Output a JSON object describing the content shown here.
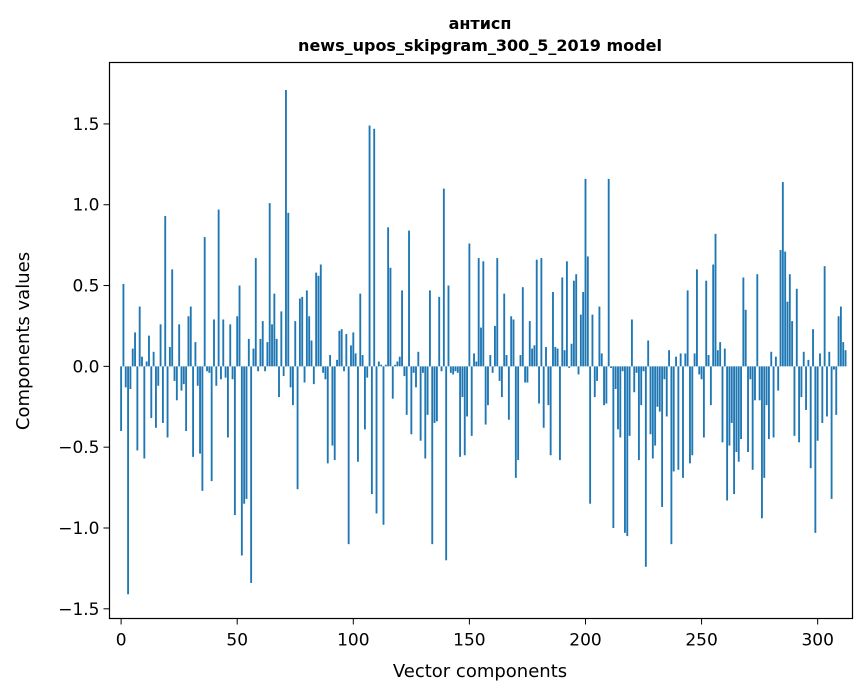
{
  "chart_data": {
    "type": "bar",
    "title_line1": "антисп",
    "title_line2": "news_upos_skipgram_300_5_2019 model",
    "xlabel": "Vector components",
    "ylabel": "Components values",
    "xlim": [
      -5,
      315
    ],
    "ylim": [
      -1.56,
      1.88
    ],
    "xticks": [
      0,
      50,
      100,
      150,
      200,
      250,
      300
    ],
    "yticks": [
      -1.5,
      -1.0,
      -0.5,
      0.0,
      0.5,
      1.0,
      1.5
    ],
    "ytick_labels": [
      "−1.5",
      "−1.0",
      "−0.5",
      "0.0",
      "0.5",
      "1.0",
      "1.5"
    ],
    "bar_color": "#1f77b4",
    "grid": false,
    "legend": false,
    "values": [
      -0.4,
      0.51,
      -0.13,
      -1.41,
      -0.14,
      0.11,
      0.21,
      -0.52,
      0.37,
      0.06,
      -0.57,
      0.03,
      0.19,
      -0.32,
      0.09,
      -0.38,
      -0.12,
      0.26,
      -0.35,
      0.93,
      -0.44,
      0.12,
      0.6,
      -0.09,
      -0.21,
      0.26,
      -0.15,
      -0.11,
      -0.4,
      0.31,
      0.37,
      -0.56,
      0.15,
      -0.12,
      -0.54,
      -0.77,
      0.8,
      -0.03,
      -0.04,
      -0.71,
      0.29,
      -0.12,
      0.97,
      -0.08,
      0.29,
      -0.07,
      -0.44,
      0.26,
      -0.08,
      -0.92,
      0.31,
      0.5,
      -1.17,
      -0.85,
      -0.82,
      0.17,
      -1.34,
      0.11,
      0.67,
      -0.03,
      0.17,
      0.28,
      -0.03,
      0.15,
      1.01,
      0.26,
      0.45,
      0.17,
      -0.19,
      0.34,
      -0.06,
      1.71,
      0.95,
      -0.13,
      -0.24,
      0.28,
      -0.76,
      0.42,
      0.43,
      -0.1,
      0.47,
      0.31,
      0.16,
      -0.11,
      0.58,
      0.56,
      0.63,
      -0.04,
      -0.08,
      -0.6,
      0.07,
      -0.49,
      -0.58,
      0.04,
      0.22,
      0.23,
      -0.03,
      0.2,
      -1.1,
      0.13,
      0.21,
      0.08,
      -0.59,
      0.45,
      0.07,
      -0.39,
      -0.07,
      1.49,
      -0.79,
      1.47,
      -0.91,
      0.03,
      0.01,
      -0.98,
      0.01,
      0.86,
      0.61,
      -0.2,
      0.01,
      0.03,
      0.06,
      0.47,
      -0.06,
      -0.3,
      0.84,
      -0.42,
      -0.04,
      -0.13,
      0.09,
      -0.46,
      -0.04,
      -0.57,
      -0.3,
      0.47,
      -1.1,
      -0.35,
      -0.34,
      0.43,
      -0.03,
      1.1,
      -1.2,
      0.5,
      -0.04,
      -0.05,
      -0.03,
      -0.04,
      -0.56,
      -0.19,
      -0.55,
      -0.31,
      0.76,
      -0.43,
      0.08,
      0.03,
      0.67,
      0.24,
      0.65,
      -0.36,
      -0.24,
      0.07,
      -0.04,
      0.25,
      0.67,
      -0.09,
      -0.19,
      0.45,
      0.07,
      -0.33,
      0.31,
      0.29,
      -0.69,
      -0.58,
      0.07,
      0.49,
      -0.1,
      -0.1,
      0.28,
      0.11,
      0.13,
      0.66,
      -0.23,
      0.67,
      -0.38,
      0.12,
      -0.24,
      -0.55,
      0.46,
      0.12,
      0.11,
      -0.58,
      0.55,
      0.1,
      0.65,
      -0.01,
      0.14,
      0.53,
      0.57,
      -0.05,
      0.32,
      0.46,
      1.16,
      0.68,
      -0.85,
      0.32,
      -0.19,
      -0.09,
      0.37,
      0.08,
      -0.24,
      -0.23,
      1.16,
      -0.01,
      -1.0,
      -0.14,
      -0.39,
      -0.44,
      -0.03,
      -1.03,
      -1.05,
      -0.43,
      0.29,
      -0.16,
      -0.04,
      -0.58,
      -0.24,
      -0.03,
      -1.24,
      0.16,
      -0.42,
      -0.57,
      -0.49,
      -0.25,
      -0.28,
      -0.87,
      -0.08,
      -0.31,
      0.1,
      -1.1,
      -0.65,
      0.06,
      -0.64,
      0.08,
      -0.69,
      0.08,
      0.47,
      -0.6,
      -0.55,
      0.08,
      0.6,
      -0.05,
      -0.08,
      -0.44,
      0.53,
      0.07,
      -0.24,
      0.63,
      0.82,
      0.1,
      0.15,
      -0.47,
      0.11,
      -0.83,
      -0.49,
      -0.35,
      -0.79,
      -0.53,
      -0.59,
      -0.45,
      0.55,
      0.35,
      -0.53,
      -0.08,
      -0.64,
      -0.21,
      0.57,
      -0.21,
      -0.94,
      -0.69,
      -0.24,
      -0.45,
      0.09,
      -0.44,
      0.06,
      -0.15,
      0.72,
      1.14,
      0.71,
      0.4,
      0.57,
      0.28,
      -0.43,
      0.48,
      -0.47,
      -0.19,
      0.09,
      -0.27,
      0.04,
      -0.63,
      0.23,
      -1.03,
      -0.46,
      0.08,
      -0.35,
      0.62,
      -0.31,
      0.09,
      -0.82,
      -0.02,
      -0.3,
      0.31,
      0.37,
      0.15,
      0.1
    ]
  }
}
